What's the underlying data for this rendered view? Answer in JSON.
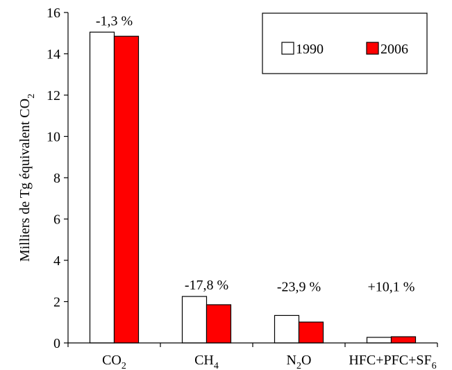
{
  "chart_data": {
    "type": "bar",
    "ylabel": "Milliers de Tg équivalent CO2",
    "ylabel_parts": {
      "main": "Milliers de Tg équivalent CO",
      "sub": "2"
    },
    "ylim": [
      0,
      16
    ],
    "yticks": [
      "0",
      "2",
      "4",
      "6",
      "8",
      "10",
      "12",
      "14",
      "16"
    ],
    "categories": [
      "CO2",
      "CH4",
      "N2O",
      "HFC+PFC+SF6"
    ],
    "category_labels": [
      {
        "main": "CO",
        "sub": "2",
        "tail": ""
      },
      {
        "main": "CH",
        "sub": "4",
        "tail": ""
      },
      {
        "main": "N",
        "sub": "2",
        "tail": "O"
      },
      {
        "main": "HFC+PFC+SF",
        "sub": "6",
        "tail": ""
      }
    ],
    "series": [
      {
        "name": "1990",
        "color": "#ffffff",
        "values": [
          15.05,
          2.25,
          1.33,
          0.27
        ]
      },
      {
        "name": "2006",
        "color": "#ff0000",
        "values": [
          14.85,
          1.85,
          1.01,
          0.3
        ]
      }
    ],
    "annotations": [
      "-1,3 %",
      "-17,8 %",
      "-23,9 %",
      "+10,1 %"
    ],
    "legend_position": "top-right",
    "grid": false
  }
}
